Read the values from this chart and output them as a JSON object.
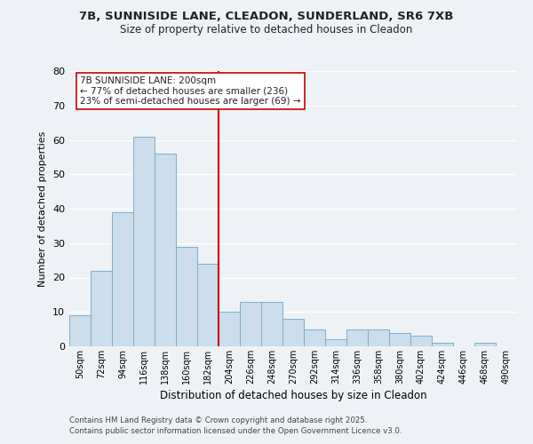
{
  "title": "7B, SUNNISIDE LANE, CLEADON, SUNDERLAND, SR6 7XB",
  "subtitle": "Size of property relative to detached houses in Cleadon",
  "xlabel": "Distribution of detached houses by size in Cleadon",
  "ylabel": "Number of detached properties",
  "bar_color": "#ccdded",
  "bar_edge_color": "#7aafc8",
  "background_color": "#eef2f7",
  "grid_color": "#ffffff",
  "categories": [
    "50sqm",
    "72sqm",
    "94sqm",
    "116sqm",
    "138sqm",
    "160sqm",
    "182sqm",
    "204sqm",
    "226sqm",
    "248sqm",
    "270sqm",
    "292sqm",
    "314sqm",
    "336sqm",
    "358sqm",
    "380sqm",
    "402sqm",
    "424sqm",
    "446sqm",
    "468sqm",
    "490sqm"
  ],
  "values": [
    9,
    22,
    39,
    61,
    56,
    29,
    24,
    10,
    13,
    13,
    8,
    5,
    2,
    5,
    5,
    4,
    3,
    1,
    0,
    1,
    0
  ],
  "ylim": [
    0,
    80
  ],
  "yticks": [
    0,
    10,
    20,
    30,
    40,
    50,
    60,
    70,
    80
  ],
  "vline_index": 7,
  "vline_color": "#cc0000",
  "annotation_title": "7B SUNNISIDE LANE: 200sqm",
  "annotation_line1": "← 77% of detached houses are smaller (236)",
  "annotation_line2": "23% of semi-detached houses are larger (69) →",
  "annotation_box_color": "#ffffff",
  "annotation_box_edge": "#cc0000",
  "footnote1": "Contains HM Land Registry data © Crown copyright and database right 2025.",
  "footnote2": "Contains public sector information licensed under the Open Government Licence v3.0."
}
